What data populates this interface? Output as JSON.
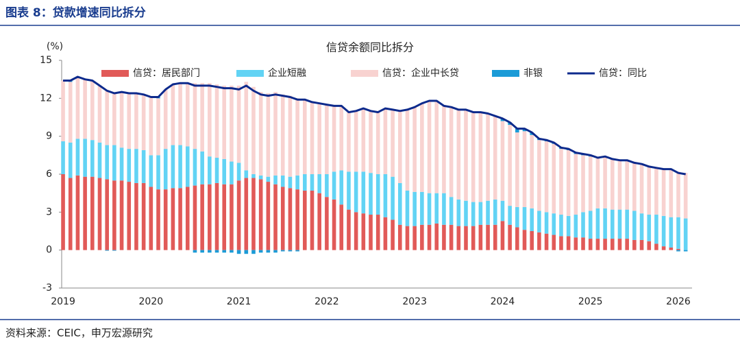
{
  "header": {
    "title": "图表 8：贷款增速同比拆分"
  },
  "footer": {
    "source": "资料来源：CEIC，申万宏源研究"
  },
  "chart_data": {
    "type": "bar",
    "stacked": true,
    "title": "信贷余额同比拆分",
    "y_label": "(%)",
    "ylim": [
      -3,
      15
    ],
    "yticks": [
      -3,
      0,
      3,
      6,
      9,
      12,
      15
    ],
    "grid": false,
    "categories": [
      "2019",
      null,
      null,
      null,
      null,
      null,
      null,
      null,
      null,
      null,
      null,
      null,
      "2020",
      null,
      null,
      null,
      null,
      null,
      null,
      null,
      null,
      null,
      null,
      null,
      "2021",
      null,
      null,
      null,
      null,
      null,
      null,
      null,
      null,
      null,
      null,
      null,
      "2022",
      null,
      null,
      null,
      null,
      null,
      null,
      null,
      null,
      null,
      null,
      null,
      "2023",
      null,
      null,
      null,
      null,
      null,
      null,
      null,
      null,
      null,
      null,
      null,
      "2024",
      null,
      null,
      null,
      null,
      null,
      null,
      null,
      null,
      null,
      null,
      null,
      "2025",
      null,
      null,
      null,
      null,
      null,
      null,
      null,
      null,
      null,
      null,
      null,
      "2026",
      null
    ],
    "series": [
      {
        "name": "信贷：居民部门",
        "type": "bar",
        "color": "#e15a58",
        "values": [
          6.0,
          5.7,
          5.9,
          5.8,
          5.8,
          5.7,
          5.6,
          5.5,
          5.5,
          5.4,
          5.3,
          5.3,
          5.0,
          4.8,
          4.8,
          4.9,
          4.9,
          5.0,
          5.1,
          5.2,
          5.2,
          5.3,
          5.2,
          5.2,
          5.5,
          5.7,
          5.7,
          5.6,
          5.4,
          5.2,
          5.0,
          4.9,
          4.8,
          4.7,
          4.7,
          4.5,
          4.2,
          4.0,
          3.6,
          3.2,
          3.0,
          2.9,
          2.8,
          2.8,
          2.6,
          2.4,
          2.0,
          1.9,
          1.9,
          2.0,
          2.0,
          2.1,
          2.0,
          2.0,
          1.9,
          1.9,
          1.9,
          2.0,
          2.0,
          2.0,
          2.3,
          2.0,
          1.8,
          1.6,
          1.5,
          1.4,
          1.3,
          1.2,
          1.1,
          1.1,
          1.0,
          1.0,
          0.9,
          0.9,
          0.9,
          0.9,
          0.9,
          0.9,
          0.8,
          0.8,
          0.7,
          0.5,
          0.3,
          0.2,
          0.1,
          0.0
        ]
      },
      {
        "name": "企业短融",
        "type": "bar",
        "color": "#62d3f4",
        "values": [
          2.6,
          2.8,
          2.9,
          3.0,
          2.9,
          2.8,
          2.7,
          2.8,
          2.6,
          2.6,
          2.7,
          2.6,
          2.5,
          2.7,
          3.2,
          3.4,
          3.4,
          3.2,
          2.9,
          2.6,
          2.2,
          2.0,
          2.0,
          1.8,
          1.4,
          0.6,
          0.3,
          0.3,
          0.4,
          0.7,
          0.9,
          0.9,
          1.1,
          1.3,
          1.3,
          1.5,
          1.8,
          2.2,
          2.7,
          3.0,
          3.2,
          3.3,
          3.3,
          3.2,
          3.4,
          3.4,
          3.3,
          2.8,
          2.7,
          2.6,
          2.5,
          2.4,
          2.5,
          2.2,
          2.1,
          2.0,
          1.9,
          1.8,
          1.9,
          2.0,
          1.6,
          1.5,
          1.6,
          1.8,
          1.8,
          1.7,
          1.7,
          1.7,
          1.7,
          1.6,
          1.8,
          2.0,
          2.2,
          2.4,
          2.4,
          2.3,
          2.3,
          2.3,
          2.3,
          2.1,
          2.1,
          2.3,
          2.4,
          2.4,
          2.5,
          2.5
        ]
      },
      {
        "name": "信贷：企业中长贷",
        "type": "bar",
        "color": "#f8d2d0",
        "values": [
          4.8,
          4.8,
          4.9,
          4.7,
          4.7,
          4.5,
          4.35,
          4.15,
          4.4,
          4.4,
          4.4,
          4.4,
          4.6,
          4.5,
          4.7,
          4.8,
          4.9,
          5.0,
          5.2,
          5.4,
          5.8,
          5.8,
          5.8,
          6.0,
          6.1,
          7.0,
          6.9,
          6.6,
          6.6,
          6.6,
          6.4,
          6.4,
          6.1,
          5.9,
          5.7,
          5.6,
          5.5,
          5.2,
          5.1,
          4.7,
          4.8,
          5.0,
          4.9,
          4.9,
          5.2,
          5.3,
          5.7,
          6.4,
          6.7,
          7.0,
          7.3,
          7.3,
          6.9,
          7.1,
          7.1,
          7.2,
          7.1,
          7.1,
          6.9,
          6.6,
          6.3,
          6.4,
          5.9,
          6.0,
          5.8,
          5.6,
          5.6,
          5.5,
          5.2,
          5.2,
          4.8,
          4.5,
          4.3,
          4.0,
          4.1,
          4.0,
          3.9,
          3.9,
          3.8,
          3.9,
          3.8,
          3.7,
          3.7,
          3.8,
          3.6,
          3.6
        ]
      },
      {
        "name": "非银",
        "type": "bar",
        "color": "#1b9bd7",
        "values": [
          0,
          0.1,
          0,
          0,
          0,
          0,
          -0.05,
          -0.05,
          0,
          0,
          0,
          0,
          0,
          0.1,
          0,
          0,
          0,
          0,
          -0.2,
          -0.2,
          -0.2,
          -0.2,
          -0.2,
          -0.2,
          -0.3,
          -0.3,
          -0.3,
          -0.2,
          -0.2,
          -0.2,
          -0.1,
          -0.1,
          -0.1,
          0,
          0,
          0,
          0,
          0,
          0,
          0,
          0,
          0,
          0,
          0,
          0,
          0,
          0,
          0,
          0,
          0,
          0,
          0,
          0,
          0,
          0,
          0,
          0,
          0,
          0,
          0,
          0.2,
          0.2,
          0.3,
          0.2,
          0.2,
          0.1,
          0.1,
          0.1,
          0.1,
          0.1,
          0.1,
          0.1,
          0.1,
          0,
          0,
          0,
          0,
          0,
          0,
          0,
          0,
          0,
          0,
          0,
          -0.1,
          -0.1
        ]
      },
      {
        "name": "信贷：同比",
        "type": "line",
        "color": "#0d2a8c",
        "values": [
          13.4,
          13.4,
          13.7,
          13.5,
          13.4,
          13.0,
          12.6,
          12.4,
          12.5,
          12.4,
          12.4,
          12.3,
          12.1,
          12.1,
          12.7,
          13.1,
          13.2,
          13.2,
          13.0,
          13.0,
          13.0,
          12.9,
          12.8,
          12.8,
          12.7,
          13.0,
          12.6,
          12.3,
          12.2,
          12.3,
          12.2,
          12.1,
          11.9,
          11.9,
          11.7,
          11.6,
          11.5,
          11.4,
          11.4,
          10.9,
          11.0,
          11.2,
          11.0,
          10.9,
          11.2,
          11.1,
          11.0,
          11.1,
          11.3,
          11.6,
          11.8,
          11.8,
          11.4,
          11.3,
          11.1,
          11.1,
          10.9,
          10.9,
          10.8,
          10.6,
          10.4,
          10.1,
          9.6,
          9.6,
          9.3,
          8.8,
          8.7,
          8.5,
          8.1,
          8.0,
          7.7,
          7.6,
          7.5,
          7.3,
          7.4,
          7.2,
          7.1,
          7.1,
          6.9,
          6.8,
          6.6,
          6.5,
          6.4,
          6.4,
          6.1,
          6.0
        ]
      }
    ]
  }
}
